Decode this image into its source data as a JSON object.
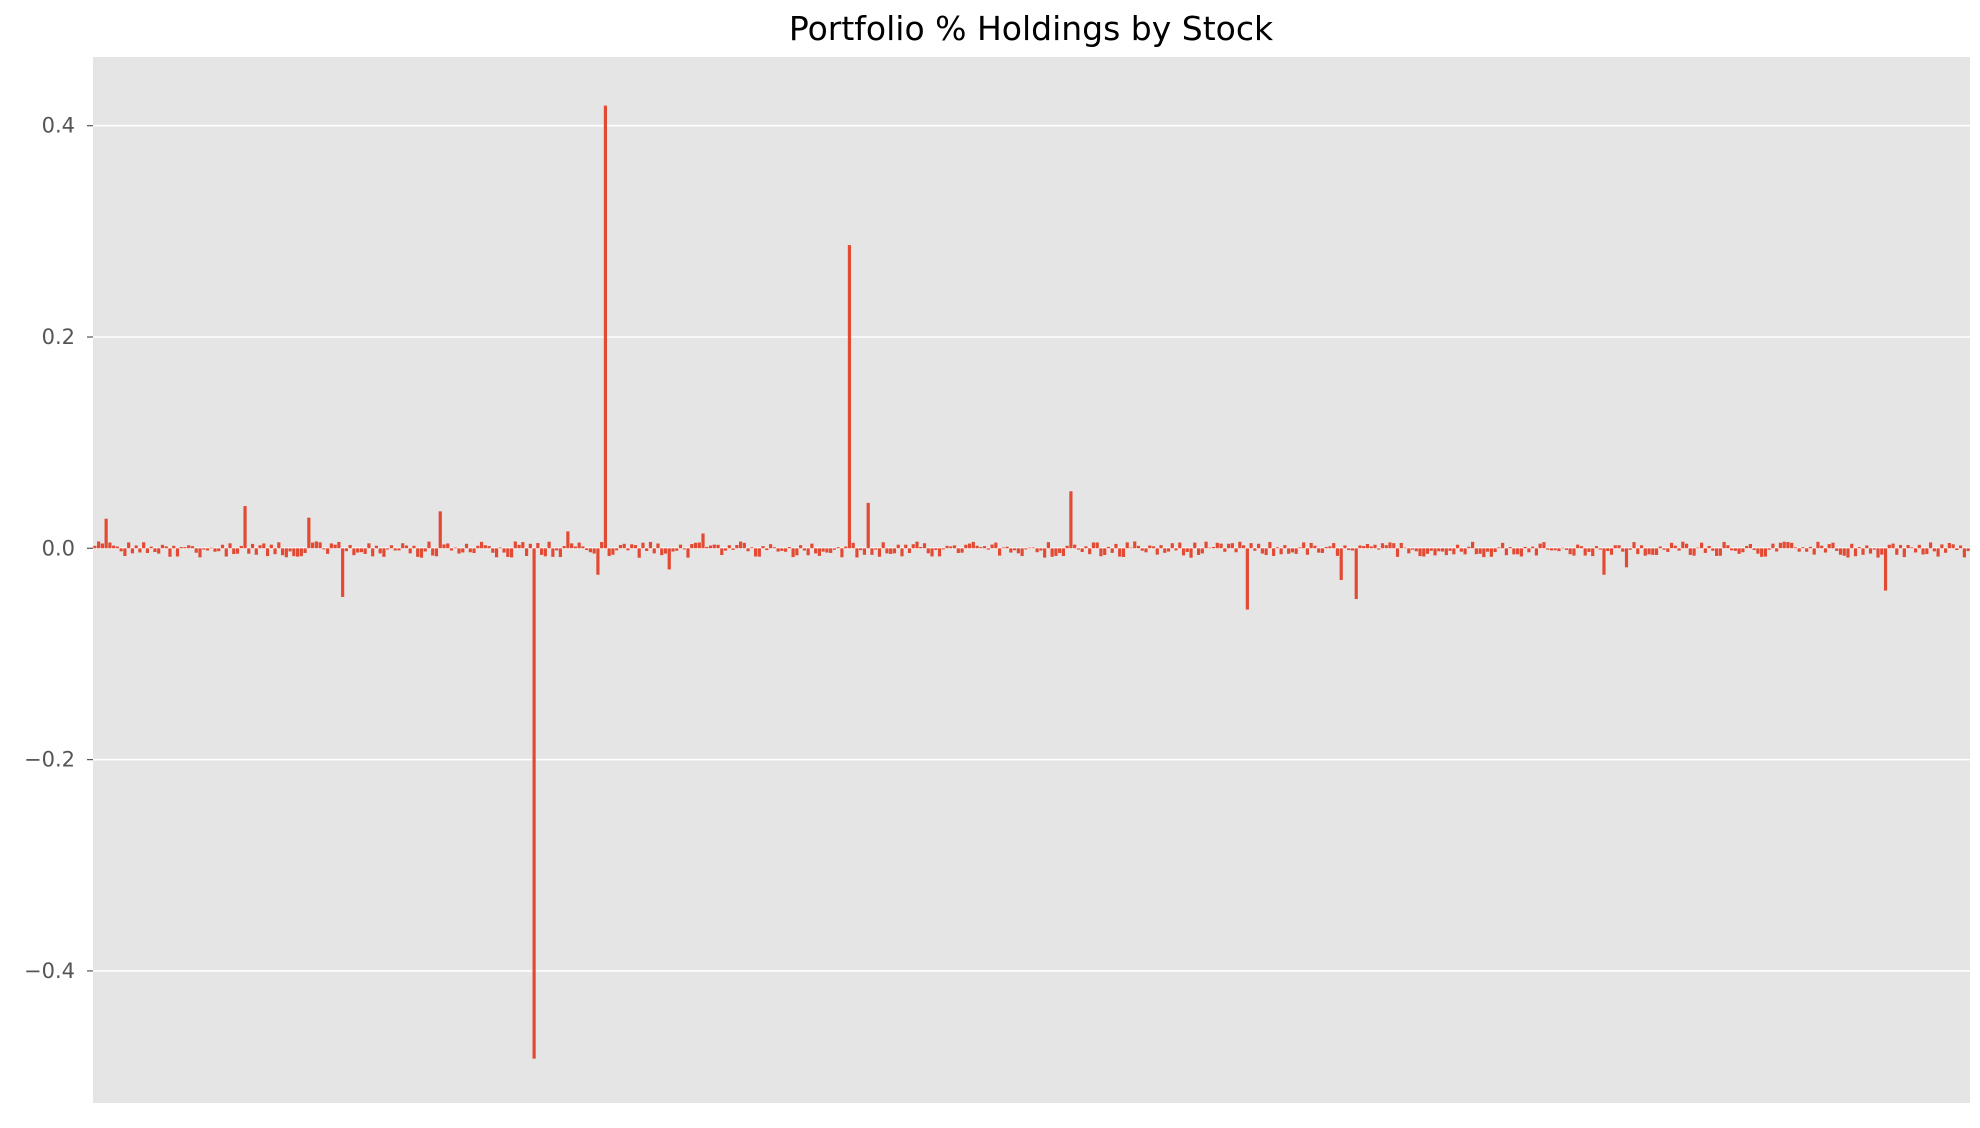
{
  "chart_data": {
    "type": "bar",
    "title": "Portfolio % Holdings by Stock",
    "xlabel": "",
    "ylabel": "",
    "ylim": [
      -0.525,
      0.465
    ],
    "yticks": [
      0.4,
      0.2,
      0.0,
      -0.2,
      -0.4
    ],
    "ytick_labels": [
      "0.4",
      "0.2",
      "0.0",
      "−0.2",
      "−0.4"
    ],
    "grid": "y",
    "x_ticks_visible": false,
    "legend": "none",
    "n_points": 500,
    "colors": {
      "bar": "#e24a33",
      "plot_background": "#e5e5e5",
      "grid": "#ffffff",
      "figure_background": "#ffffff"
    },
    "spikes": [
      {
        "index": 3,
        "value": 0.028
      },
      {
        "index": 40,
        "value": 0.04
      },
      {
        "index": 57,
        "value": 0.029
      },
      {
        "index": 66,
        "value": -0.046
      },
      {
        "index": 92,
        "value": 0.035
      },
      {
        "index": 117,
        "value": -0.483
      },
      {
        "index": 126,
        "value": 0.016
      },
      {
        "index": 134,
        "value": -0.025
      },
      {
        "index": 136,
        "value": 0.419
      },
      {
        "index": 153,
        "value": -0.02
      },
      {
        "index": 162,
        "value": 0.014
      },
      {
        "index": 201,
        "value": 0.287
      },
      {
        "index": 206,
        "value": 0.043
      },
      {
        "index": 260,
        "value": 0.054
      },
      {
        "index": 307,
        "value": -0.058
      },
      {
        "index": 332,
        "value": -0.03
      },
      {
        "index": 336,
        "value": -0.048
      },
      {
        "index": 402,
        "value": -0.025
      },
      {
        "index": 408,
        "value": -0.018
      },
      {
        "index": 477,
        "value": -0.04
      }
    ]
  }
}
